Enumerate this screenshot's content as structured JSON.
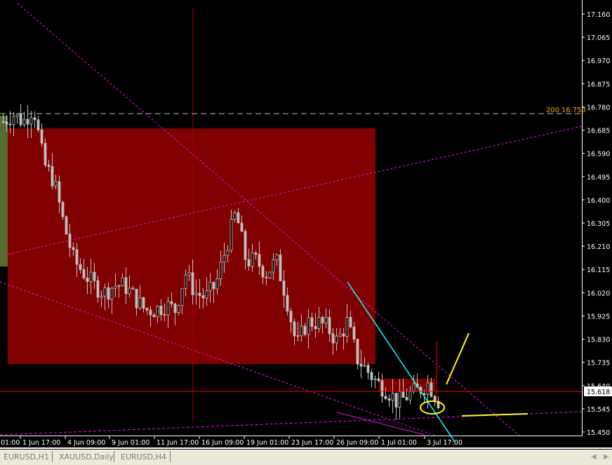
{
  "chart_data": {
    "type": "candlestick",
    "symbol_tab_active": "EURUSD,H1",
    "ylim": [
      15.45,
      17.16
    ],
    "y_ticks": [
      "17.160",
      "17.065",
      "16.970",
      "16.875",
      "16.780",
      "16.685",
      "16.590",
      "16.495",
      "16.400",
      "16.305",
      "16.210",
      "16.115",
      "16.020",
      "15.925",
      "15.830",
      "15.735",
      "15.640",
      "15.545",
      "15.450"
    ],
    "x_ticks": [
      "01:00",
      "1 Jun 17:00",
      "4 Jun 09:00",
      "9 Jun 01:00",
      "11 Jun 17:00",
      "16 Jun 09:00",
      "19 Jun 01:00",
      "23 Jun 17:00",
      "26 Jun 09:00",
      "1 Jul 01:00",
      "3 Jul 17:00"
    ],
    "closes": [
      16.72,
      16.75,
      16.72,
      16.78,
      16.55,
      16.48,
      16.3,
      16.15,
      16.1,
      16.05,
      16.02,
      16.05,
      16.05,
      16.0,
      15.95,
      15.95,
      15.97,
      15.95,
      16.1,
      16.02,
      16.0,
      16.05,
      16.2,
      16.35,
      16.15,
      16.15,
      16.1,
      16.15,
      16.0,
      15.8,
      15.9,
      15.9,
      15.88,
      15.82,
      15.9,
      15.75,
      15.7,
      15.65,
      15.62,
      15.57,
      15.6,
      15.62,
      15.65,
      15.58
    ],
    "bid_price": "15.618",
    "horizontal_level": {
      "label": "200",
      "price": "16.753",
      "color": "#ffa500"
    },
    "colors": {
      "candles": "#c0c0c0",
      "rectangle": "#800000",
      "bid_line": "#ff0000",
      "trendlines": "#ff00ff",
      "cyan_line": "#00ffff",
      "yellow_marks": "#ffff00",
      "green_rect": "#556b2f"
    },
    "grid": false
  },
  "tabs": [
    {
      "label": "EURUSD,H1"
    },
    {
      "label": "XAUUSD,Daily"
    },
    {
      "label": "EURUSD,H4"
    }
  ]
}
